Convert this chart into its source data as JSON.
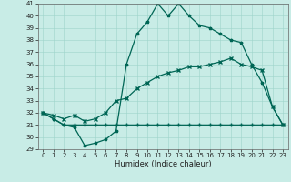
{
  "xlabel": "Humidex (Indice chaleur)",
  "ylabel": "",
  "xlim": [
    -0.5,
    23.5
  ],
  "ylim": [
    29,
    41
  ],
  "yticks": [
    29,
    30,
    31,
    32,
    33,
    34,
    35,
    36,
    37,
    38,
    39,
    40,
    41
  ],
  "xticks": [
    0,
    1,
    2,
    3,
    4,
    5,
    6,
    7,
    8,
    9,
    10,
    11,
    12,
    13,
    14,
    15,
    16,
    17,
    18,
    19,
    20,
    21,
    22,
    23
  ],
  "bg_color": "#c8ece6",
  "line_color": "#006655",
  "line1_x": [
    0,
    1,
    2,
    3,
    4,
    5,
    6,
    7,
    8,
    9,
    10,
    11,
    12,
    13,
    14,
    15,
    16,
    17,
    18,
    19,
    20,
    21,
    22,
    23
  ],
  "line1_y": [
    32,
    31.5,
    31,
    30.8,
    29.3,
    29.5,
    29.8,
    30.5,
    36,
    38.5,
    39.5,
    41,
    40,
    41,
    40,
    39.2,
    39,
    38.5,
    38,
    37.8,
    36,
    34.5,
    32.5,
    31
  ],
  "line2_x": [
    0,
    1,
    2,
    3,
    4,
    5,
    6,
    7,
    8,
    9,
    10,
    11,
    12,
    13,
    14,
    15,
    16,
    17,
    18,
    19,
    20,
    21,
    22,
    23
  ],
  "line2_y": [
    32,
    31.5,
    31,
    31,
    31,
    31,
    31,
    31,
    31,
    31,
    31,
    31,
    31,
    31,
    31,
    31,
    31,
    31,
    31,
    31,
    31,
    31,
    31,
    31
  ],
  "line3_x": [
    0,
    1,
    2,
    3,
    4,
    5,
    6,
    7,
    8,
    9,
    10,
    11,
    12,
    13,
    14,
    15,
    16,
    17,
    18,
    19,
    20,
    21,
    22,
    23
  ],
  "line3_y": [
    32,
    31.8,
    31.5,
    31.8,
    31.3,
    31.5,
    32,
    33,
    33.2,
    34,
    34.5,
    35,
    35.3,
    35.5,
    35.8,
    35.8,
    36,
    36.2,
    36.5,
    36,
    35.8,
    35.5,
    32.5,
    31
  ],
  "tick_fontsize": 5,
  "xlabel_fontsize": 6,
  "lw": 0.9,
  "ms": 2.5
}
